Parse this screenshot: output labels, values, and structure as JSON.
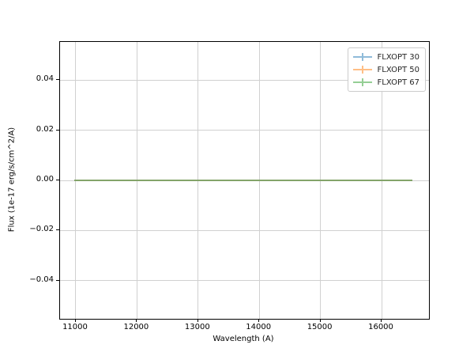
{
  "figure": {
    "background": "#ffffff",
    "spine_color": "#000000",
    "grid_color": "#d0d0d0"
  },
  "legend": {
    "entries": [
      {
        "label": "FLXOPT 30",
        "color": "#8fbbd9"
      },
      {
        "label": "FLXOPT 50",
        "color": "#ffbf86"
      },
      {
        "label": "FLXOPT 67",
        "color": "#95cf95"
      }
    ]
  },
  "chart_data": {
    "type": "line",
    "title": "",
    "xlabel": "Wavelength (A)",
    "ylabel": "Flux (1e-17 erg/s/cm^2/A)",
    "xlim": [
      10742,
      16775
    ],
    "ylim": [
      -0.0553,
      0.0553
    ],
    "xticks": [
      11000,
      12000,
      13000,
      14000,
      15000,
      16000
    ],
    "yticks": [
      -0.04,
      -0.02,
      0.0,
      0.02,
      0.04
    ],
    "grid": true,
    "legend_position": "upper right",
    "series": [
      {
        "name": "FLXOPT 30",
        "color": "#1f77b4",
        "alpha": 0.5,
        "x": [
          10980,
          16500
        ],
        "y": [
          0.0,
          0.0
        ]
      },
      {
        "name": "FLXOPT 50",
        "color": "#ff7f0e",
        "alpha": 0.5,
        "x": [
          10980,
          16500
        ],
        "y": [
          0.0,
          0.0
        ]
      },
      {
        "name": "FLXOPT 67",
        "color": "#2ca02c",
        "alpha": 0.5,
        "x": [
          10980,
          16500
        ],
        "y": [
          0.0,
          0.0
        ]
      }
    ],
    "combined_line_color": "#84a46a"
  }
}
